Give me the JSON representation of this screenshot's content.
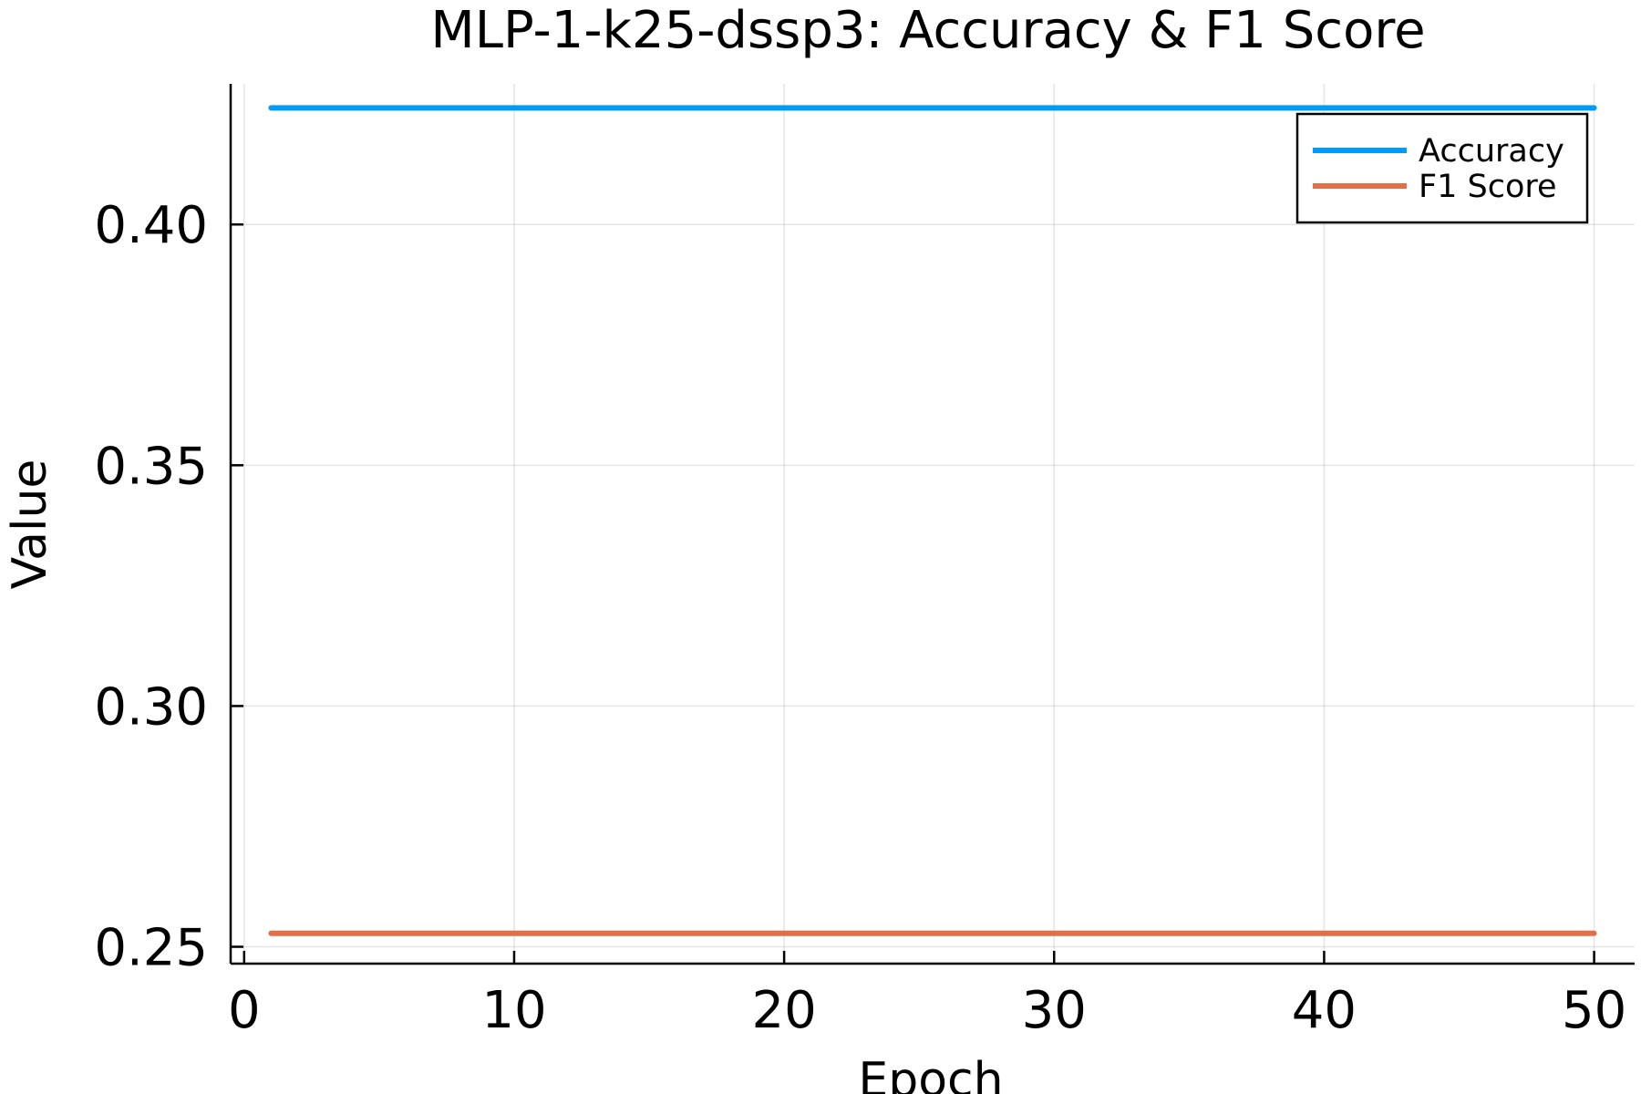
{
  "chart_data": {
    "type": "line",
    "title": "MLP-1-k25-dssp3: Accuracy & F1 Score",
    "xlabel": "Epoch",
    "ylabel": "Value",
    "xlim": [
      -0.5,
      51.5
    ],
    "ylim": [
      0.2465,
      0.4292
    ],
    "xticks": [
      0,
      10,
      20,
      30,
      40,
      50
    ],
    "yticks": [
      0.25,
      0.3,
      0.35,
      0.4
    ],
    "xtick_labels": [
      "0",
      "10",
      "20",
      "30",
      "40",
      "50"
    ],
    "ytick_labels": [
      "0.25",
      "0.30",
      "0.35",
      "0.40"
    ],
    "grid": true,
    "legend_position": "top-right",
    "series": [
      {
        "name": "Accuracy",
        "color": "#009af9",
        "x": [
          1,
          50
        ],
        "y": [
          0.4242,
          0.4242
        ]
      },
      {
        "name": "F1 Score",
        "color": "#e26f46",
        "x": [
          1,
          50
        ],
        "y": [
          0.2528,
          0.2528
        ]
      }
    ]
  }
}
